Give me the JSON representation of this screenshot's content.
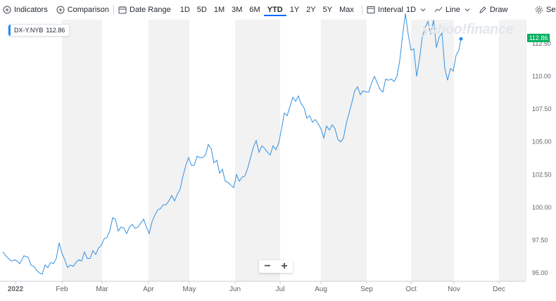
{
  "toolbar": {
    "indicators_label": "Indicators",
    "comparison_label": "Comparison",
    "date_range_label": "Date Range",
    "ranges": [
      "1D",
      "5D",
      "1M",
      "3M",
      "6M",
      "YTD",
      "1Y",
      "2Y",
      "5Y",
      "Max"
    ],
    "active_range": "YTD",
    "interval_label": "Interval",
    "interval_value": "1D",
    "chart_type_label": "Line",
    "draw_label": "Draw",
    "settings_label": "Se"
  },
  "legend": {
    "symbol": "DX-Y.NYB",
    "value": "112.86"
  },
  "price_tag": "112.86",
  "watermark": "yahoo!finance",
  "colors": {
    "line": "#3390e0",
    "accent": "#0f69ff",
    "price_tag": "#00b061",
    "band": "#f2f2f2"
  },
  "chart_data": {
    "type": "line",
    "x_labels": [
      "2022",
      "Feb",
      "Mar",
      "Apr",
      "May",
      "Jun",
      "Jul",
      "Aug",
      "Sep",
      "Oct",
      "Nov",
      "Dec"
    ],
    "y_ticks": [
      "95.00",
      "97.50",
      "100.00",
      "102.50",
      "105.00",
      "107.50",
      "110.00",
      "112.50"
    ],
    "ylim": [
      94.5,
      115.5
    ],
    "series": [
      {
        "values": [
          [
            0,
            96.6
          ],
          [
            6,
            96.2
          ],
          [
            12,
            95.9
          ],
          [
            18,
            96.0
          ],
          [
            24,
            95.7
          ],
          [
            30,
            96.3
          ],
          [
            36,
            96.2
          ],
          [
            40,
            95.6
          ],
          [
            44,
            95.5
          ],
          [
            48,
            95.2
          ],
          [
            52,
            95.0
          ],
          [
            56,
            94.9
          ],
          [
            60,
            95.6
          ],
          [
            64,
            95.4
          ],
          [
            68,
            95.8
          ],
          [
            72,
            95.7
          ],
          [
            76,
            96.1
          ],
          [
            80,
            97.3
          ],
          [
            84,
            96.5
          ],
          [
            88,
            96.0
          ],
          [
            92,
            95.4
          ],
          [
            96,
            95.6
          ],
          [
            100,
            95.5
          ],
          [
            104,
            95.8
          ],
          [
            108,
            96.0
          ],
          [
            112,
            95.9
          ],
          [
            116,
            96.6
          ],
          [
            120,
            96.1
          ],
          [
            124,
            96.1
          ],
          [
            128,
            96.7
          ],
          [
            132,
            96.4
          ],
          [
            136,
            96.9
          ],
          [
            140,
            97.1
          ],
          [
            144,
            97.6
          ],
          [
            148,
            97.7
          ],
          [
            152,
            98.2
          ],
          [
            156,
            99.2
          ],
          [
            160,
            99.1
          ],
          [
            164,
            98.2
          ],
          [
            168,
            98.5
          ],
          [
            172,
            98.4
          ],
          [
            176,
            98.0
          ],
          [
            180,
            98.5
          ],
          [
            184,
            98.7
          ],
          [
            188,
            98.4
          ],
          [
            192,
            98.5
          ],
          [
            196,
            98.8
          ],
          [
            200,
            99.1
          ],
          [
            204,
            98.5
          ],
          [
            208,
            98.0
          ],
          [
            212,
            98.9
          ],
          [
            216,
            99.4
          ],
          [
            220,
            99.8
          ],
          [
            224,
            99.9
          ],
          [
            228,
            100.2
          ],
          [
            232,
            100.2
          ],
          [
            236,
            100.5
          ],
          [
            240,
            100.9
          ],
          [
            244,
            100.5
          ],
          [
            248,
            101.0
          ],
          [
            252,
            101.4
          ],
          [
            256,
            102.4
          ],
          [
            260,
            103.2
          ],
          [
            264,
            103.8
          ],
          [
            268,
            103.2
          ],
          [
            272,
            103.2
          ],
          [
            276,
            103.9
          ],
          [
            280,
            103.8
          ],
          [
            284,
            103.8
          ],
          [
            288,
            104.0
          ],
          [
            292,
            104.8
          ],
          [
            296,
            104.5
          ],
          [
            300,
            103.4
          ],
          [
            304,
            103.6
          ],
          [
            308,
            102.6
          ],
          [
            312,
            102.9
          ],
          [
            316,
            102.0
          ],
          [
            320,
            101.9
          ],
          [
            324,
            101.7
          ],
          [
            328,
            101.5
          ],
          [
            332,
            102.5
          ],
          [
            336,
            102.0
          ],
          [
            340,
            102.3
          ],
          [
            344,
            102.4
          ],
          [
            348,
            103.0
          ],
          [
            352,
            103.8
          ],
          [
            356,
            104.6
          ],
          [
            360,
            105.1
          ],
          [
            364,
            104.2
          ],
          [
            368,
            104.7
          ],
          [
            372,
            104.5
          ],
          [
            376,
            104.2
          ],
          [
            380,
            104.0
          ],
          [
            384,
            104.7
          ],
          [
            388,
            104.4
          ],
          [
            392,
            104.9
          ],
          [
            396,
            106.0
          ],
          [
            400,
            107.2
          ],
          [
            404,
            107.0
          ],
          [
            408,
            107.7
          ],
          [
            412,
            108.4
          ],
          [
            416,
            108.1
          ],
          [
            420,
            108.5
          ],
          [
            424,
            107.9
          ],
          [
            428,
            107.6
          ],
          [
            432,
            106.8
          ],
          [
            436,
            107.0
          ],
          [
            440,
            106.5
          ],
          [
            444,
            106.7
          ],
          [
            448,
            106.4
          ],
          [
            452,
            106.0
          ],
          [
            456,
            105.3
          ],
          [
            460,
            106.2
          ],
          [
            464,
            105.9
          ],
          [
            468,
            106.3
          ],
          [
            472,
            106.0
          ],
          [
            476,
            105.2
          ],
          [
            480,
            105.0
          ],
          [
            484,
            105.3
          ],
          [
            488,
            106.4
          ],
          [
            492,
            107.2
          ],
          [
            496,
            108.0
          ],
          [
            500,
            108.9
          ],
          [
            504,
            109.2
          ],
          [
            508,
            108.6
          ],
          [
            512,
            108.9
          ],
          [
            516,
            108.8
          ],
          [
            520,
            108.8
          ],
          [
            524,
            109.5
          ],
          [
            528,
            110.0
          ],
          [
            532,
            109.5
          ],
          [
            536,
            109.0
          ],
          [
            540,
            108.8
          ],
          [
            544,
            109.8
          ],
          [
            548,
            109.7
          ],
          [
            552,
            109.8
          ],
          [
            556,
            109.6
          ],
          [
            560,
            110.0
          ],
          [
            564,
            111.2
          ],
          [
            568,
            113.1
          ],
          [
            572,
            114.8
          ],
          [
            576,
            113.2
          ],
          [
            580,
            112.0
          ],
          [
            584,
            112.1
          ],
          [
            588,
            110.0
          ],
          [
            592,
            111.3
          ],
          [
            596,
            113.0
          ],
          [
            600,
            113.7
          ],
          [
            604,
            114.2
          ],
          [
            608,
            113.2
          ],
          [
            612,
            114.3
          ],
          [
            616,
            112.2
          ],
          [
            620,
            113.0
          ],
          [
            624,
            113.3
          ],
          [
            628,
            110.6
          ],
          [
            632,
            109.7
          ],
          [
            636,
            110.6
          ],
          [
            640,
            110.4
          ],
          [
            644,
            111.6
          ],
          [
            648,
            112.0
          ],
          [
            651,
            112.86
          ]
        ]
      }
    ]
  }
}
